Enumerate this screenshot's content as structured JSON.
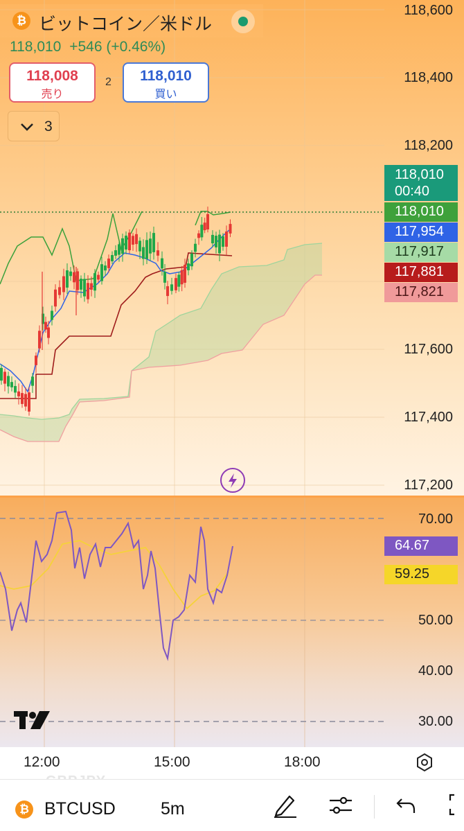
{
  "header": {
    "symbol_title": "ビットコイン／米ドル",
    "last_price": "118,010",
    "change": "+546 (+0.46%)",
    "market_status_color": "#1a9a6e"
  },
  "trade": {
    "sell_price": "118,008",
    "sell_label": "売り",
    "spread": "2",
    "buy_price": "118,010",
    "buy_label": "買い"
  },
  "indicators_toggle": {
    "icon": "chevron-down-icon",
    "count": "3"
  },
  "price_axis": {
    "ticks": [
      "118,600",
      "118,400",
      "118,200",
      "117,600",
      "117,400",
      "117,200"
    ]
  },
  "price_badges": [
    {
      "value": "118,010",
      "sub": "00:40",
      "color": "#1a9a7a"
    },
    {
      "value": "118,010",
      "color": "#3ea13b"
    },
    {
      "value": "117,954",
      "color": "#2f63e6"
    },
    {
      "value": "117,917",
      "color": "#a6dba6"
    },
    {
      "value": "117,881",
      "color": "#b71c1c"
    },
    {
      "value": "117,821",
      "color": "#f09a9a"
    }
  ],
  "rsi_axis": {
    "ticks": [
      "70.00",
      "50.00",
      "40.00",
      "30.00"
    ]
  },
  "rsi_badges": [
    {
      "value": "64.67",
      "color": "#7e57c2"
    },
    {
      "value": "59.25",
      "color": "#f5d629"
    }
  ],
  "time_axis": {
    "ticks": [
      "12:00",
      "15:00",
      "18:00"
    ]
  },
  "watermark": "GBPJPY",
  "bottom_bar": {
    "symbol": "BTCUSD",
    "interval": "5m"
  },
  "chart_data": {
    "type": "candlestick",
    "price_range": [
      117200,
      118600
    ],
    "rsi_range": [
      30,
      70
    ],
    "last_price": 118010,
    "time_ticks": [
      "12:00",
      "15:00",
      "18:00"
    ]
  }
}
